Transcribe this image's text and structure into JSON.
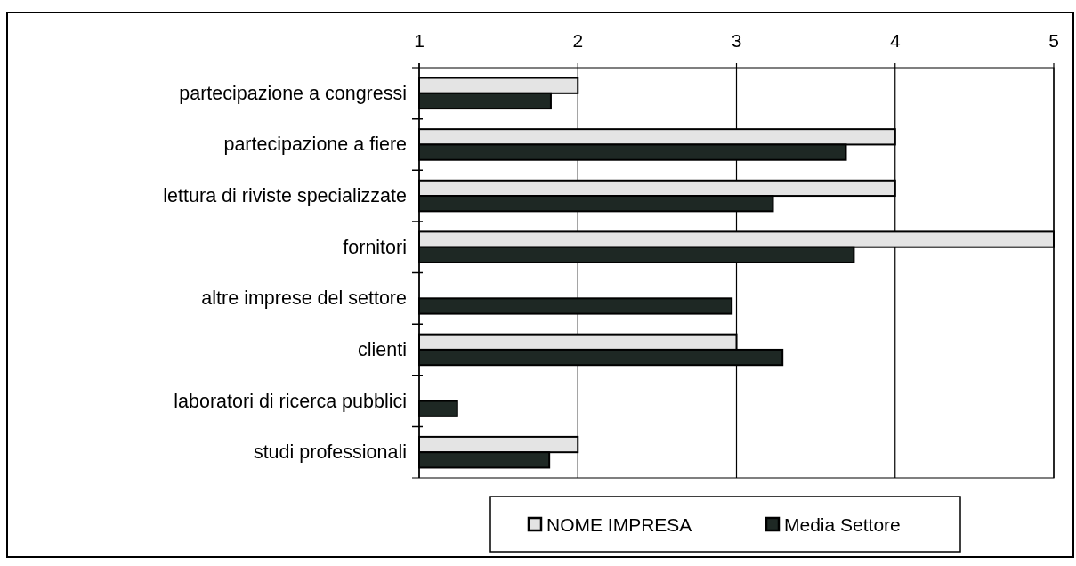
{
  "chart_data": {
    "type": "bar",
    "orientation": "horizontal",
    "categories": [
      "partecipazione a congressi",
      "partecipazione a fiere",
      "lettura di riviste specializzate",
      "fornitori",
      "altre imprese del settore",
      "clienti",
      "laboratori di ricerca pubblici",
      "studi professionali"
    ],
    "series": [
      {
        "name": "NOME IMPRESA",
        "color": "#e4e4e4",
        "values": [
          2,
          4,
          4,
          5,
          null,
          3,
          null,
          2
        ]
      },
      {
        "name": "Media Settore",
        "color": "#1e2824",
        "values": [
          1.83,
          3.69,
          3.23,
          3.74,
          2.97,
          3.29,
          1.24,
          1.82
        ]
      }
    ],
    "xlim": [
      1,
      5
    ],
    "xticks": [
      1,
      2,
      3,
      4,
      5
    ],
    "grid": "x",
    "legend": "bottom"
  }
}
